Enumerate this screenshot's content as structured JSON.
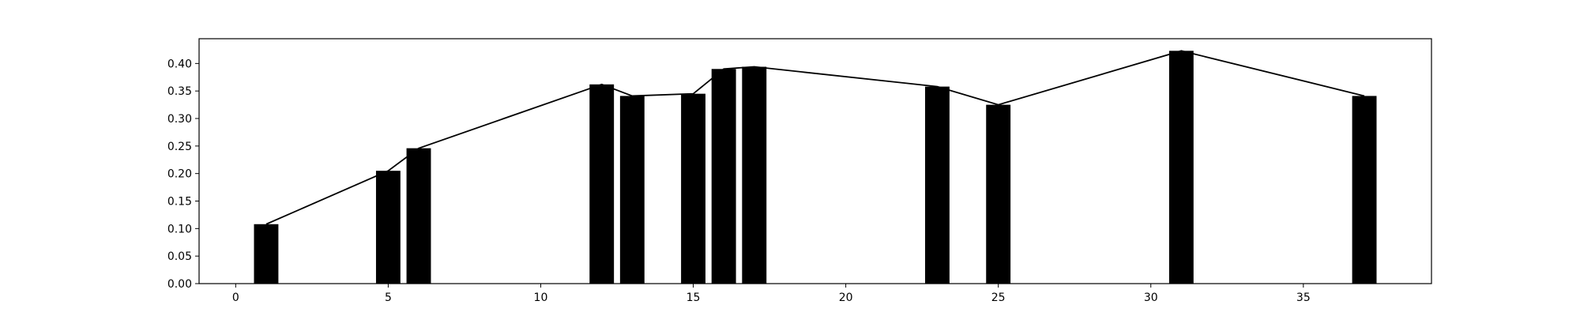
{
  "chart_data": {
    "type": "bar",
    "x": [
      1,
      5,
      6,
      12,
      13,
      15,
      16,
      17,
      23,
      25,
      31,
      37
    ],
    "values": [
      0.108,
      0.205,
      0.246,
      0.362,
      0.341,
      0.345,
      0.39,
      0.394,
      0.358,
      0.325,
      0.423,
      0.341
    ],
    "overlay_line": true,
    "xlim": [
      -1.2,
      39.2
    ],
    "ylim": [
      0,
      0.445
    ],
    "xticks": [
      0,
      5,
      10,
      15,
      20,
      25,
      30,
      35
    ],
    "yticks": [
      0.0,
      0.05,
      0.1,
      0.15,
      0.2,
      0.25,
      0.3,
      0.35,
      0.4
    ],
    "xtick_labels": [
      "0",
      "5",
      "10",
      "15",
      "20",
      "25",
      "30",
      "35"
    ],
    "ytick_labels": [
      "0.00",
      "0.05",
      "0.10",
      "0.15",
      "0.20",
      "0.25",
      "0.30",
      "0.35",
      "0.40"
    ],
    "title": "",
    "xlabel": "",
    "ylabel": "",
    "grid": false,
    "bar_color": "#000000",
    "line_color": "#000000"
  }
}
